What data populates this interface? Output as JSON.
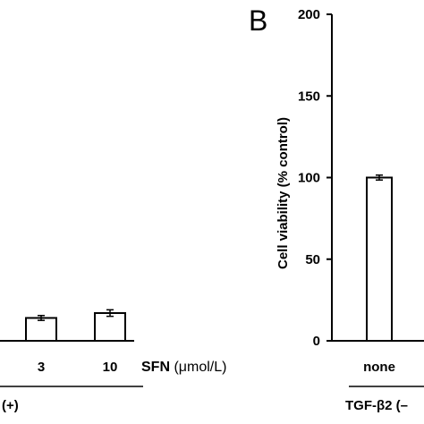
{
  "chart_data": [
    {
      "type": "bar",
      "panel_label": "",
      "categories": [
        "3",
        "10"
      ],
      "values": [
        14,
        17
      ],
      "errors": [
        1.5,
        2
      ],
      "xlabel_prefix": "SFN",
      "xlabel_unit": " (μmol/L)",
      "group_label": "(+)",
      "ylim": [
        0,
        200
      ],
      "grid": false,
      "bar_color": "#ffffff",
      "edge_color": "#000000"
    },
    {
      "type": "bar",
      "panel_label": "B",
      "categories": [
        "none"
      ],
      "values": [
        100
      ],
      "errors": [
        1.5
      ],
      "ylabel": "Cell viability (% control)",
      "yticks": [
        "0",
        "50",
        "100",
        "150",
        "200"
      ],
      "ytick_values": [
        0,
        50,
        100,
        150,
        200
      ],
      "ylim": [
        0,
        200
      ],
      "group_label": "TGF-β2 (–",
      "grid": false,
      "bar_color": "#ffffff",
      "edge_color": "#000000"
    }
  ]
}
